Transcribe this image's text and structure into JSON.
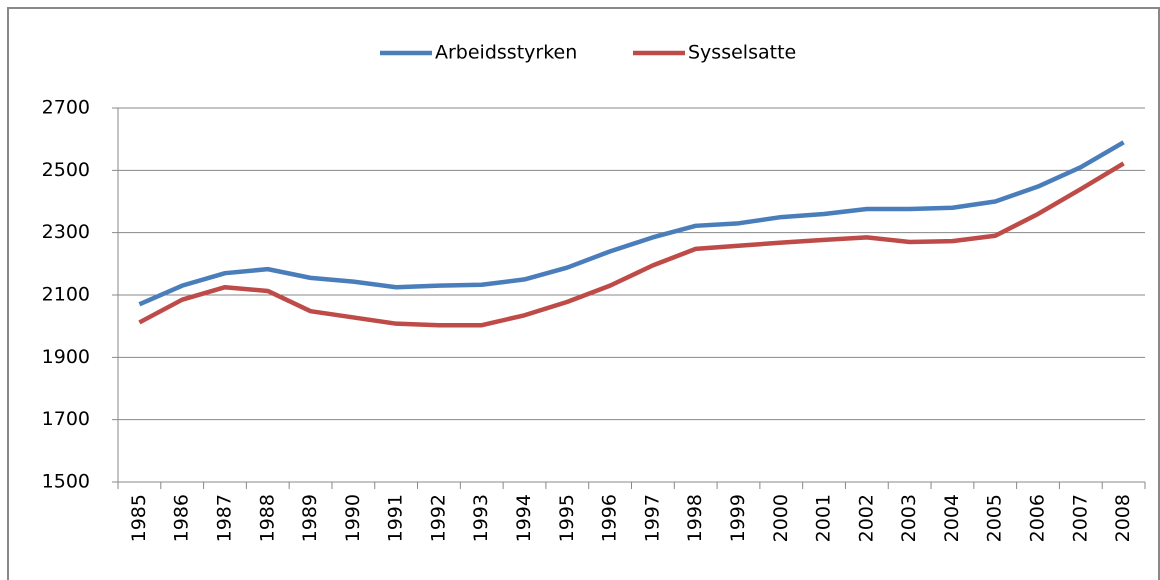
{
  "chart_data": {
    "type": "line",
    "categories": [
      "1985",
      "1986",
      "1987",
      "1988",
      "1989",
      "1990",
      "1991",
      "1992",
      "1993",
      "1994",
      "1995",
      "1996",
      "1997",
      "1998",
      "1999",
      "2000",
      "2001",
      "2002",
      "2003",
      "2004",
      "2005",
      "2006",
      "2007",
      "2008"
    ],
    "series": [
      {
        "name": "Arbeidsstyrken",
        "color": "#4a7ebb",
        "values": [
          2070,
          2130,
          2170,
          2183,
          2155,
          2143,
          2125,
          2130,
          2133,
          2150,
          2188,
          2240,
          2285,
          2322,
          2330,
          2350,
          2360,
          2376,
          2376,
          2380,
          2400,
          2448,
          2510,
          2590
        ]
      },
      {
        "name": "Sysselsatte",
        "color": "#be4b48",
        "values": [
          2012,
          2085,
          2125,
          2113,
          2048,
          2028,
          2008,
          2003,
          2003,
          2035,
          2078,
          2130,
          2195,
          2248,
          2258,
          2268,
          2277,
          2285,
          2270,
          2273,
          2290,
          2360,
          2440,
          2522
        ]
      }
    ],
    "ylim": [
      1500,
      2700
    ],
    "yticks": [
      1500,
      1700,
      1900,
      2100,
      2300,
      2500,
      2700
    ],
    "grid": true,
    "legend": "top"
  }
}
